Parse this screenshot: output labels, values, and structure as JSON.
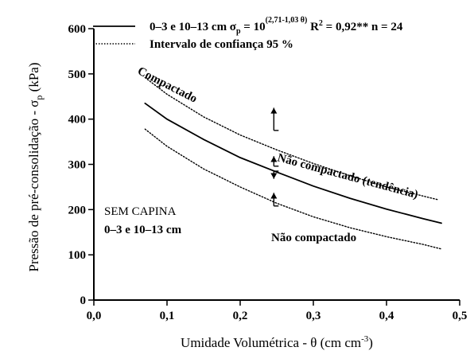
{
  "chart_data": {
    "type": "line",
    "xlabel": "Umidade Volumétrica - θ (cm cm",
    "xlabel_sup": "-3",
    "xlabel_end": ")",
    "ylabel": "Pressão de pré-consolidação - σ",
    "ylabel_sub": "p",
    "ylabel_end": " (kPa)",
    "xlim": [
      0.0,
      0.5
    ],
    "ylim": [
      0,
      600
    ],
    "x_ticks": [
      "0,0",
      "0,1",
      "0,2",
      "0,3",
      "0,4",
      "0,5"
    ],
    "y_ticks": [
      "0",
      "100",
      "200",
      "300",
      "400",
      "500",
      "600"
    ],
    "legend": {
      "placement": "top-right",
      "fit_label": "0–3 e 10–13 cm σ",
      "fit_sub": "p",
      "fit_eq": " = 10",
      "fit_exp": "(2,71-1,03 θ)",
      "fit_stats": " R",
      "fit_stats_sup": "2",
      "fit_stats_end": " = 0,92** n = 24",
      "ci_label": "Intervalo de confiança 95 %"
    },
    "series": [
      {
        "name": "0–3 e 10–13 cm",
        "style": "solid",
        "x": [
          0.07,
          0.1,
          0.15,
          0.2,
          0.25,
          0.3,
          0.35,
          0.4,
          0.45,
          0.475
        ],
        "y": [
          435,
          400,
          355,
          315,
          283,
          252,
          225,
          201,
          180,
          170
        ]
      },
      {
        "name": "Intervalo de confiança 95 %",
        "style": "dotted",
        "x": [
          0.07,
          0.1,
          0.15,
          0.2,
          0.25,
          0.3,
          0.35,
          0.4,
          0.45,
          0.47
        ],
        "y": [
          492,
          455,
          405,
          365,
          332,
          302,
          275,
          250,
          230,
          222
        ]
      },
      {
        "name": "Intervalo de confiança 95 %",
        "style": "dotted",
        "x": [
          0.07,
          0.1,
          0.15,
          0.2,
          0.25,
          0.3,
          0.35,
          0.4,
          0.45,
          0.475
        ],
        "y": [
          378,
          340,
          290,
          250,
          214,
          184,
          160,
          140,
          123,
          113
        ]
      }
    ],
    "annotations": {
      "compactado": "Compactado",
      "nao_compactado_tendencia": "Não compactado (tendência)",
      "nao_compactado": "Não compactado",
      "sem_capina": "SEM CAPINA",
      "depth": "0–3 e 10–13 cm"
    },
    "arrows": [
      {
        "x": 0.246,
        "y_from": 375,
        "y_to": 425,
        "dir": "up"
      },
      {
        "x": 0.246,
        "y_from": 296,
        "y_to": 318,
        "dir": "up"
      },
      {
        "x": 0.246,
        "y_from": 285,
        "y_to": 268,
        "dir": "down"
      },
      {
        "x": 0.246,
        "y_from": 208,
        "y_to": 237,
        "dir": "up"
      }
    ]
  }
}
